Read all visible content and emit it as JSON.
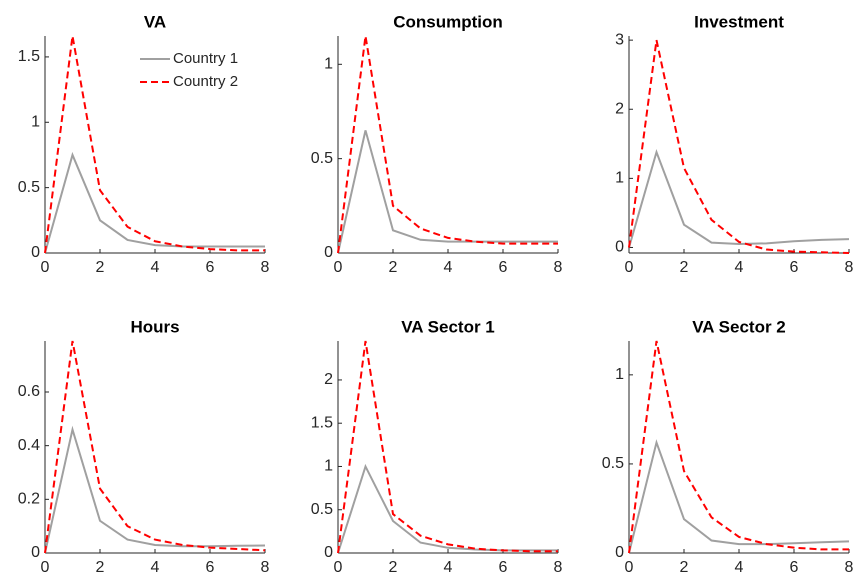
{
  "chart_data": [
    {
      "type": "line",
      "title": "VA",
      "x": [
        0,
        1,
        2,
        3,
        4,
        5,
        6,
        7,
        8
      ],
      "xlim": [
        0,
        8
      ],
      "xticks": [
        0,
        2,
        4,
        6,
        8
      ],
      "ylim": [
        0,
        1.66
      ],
      "yticks": [
        0,
        0.5,
        1,
        1.5
      ],
      "legend": "northeast",
      "series": [
        {
          "name": "Country 1",
          "color": "#a0a0a0",
          "style": "solid",
          "values": [
            0,
            0.75,
            0.25,
            0.1,
            0.06,
            0.05,
            0.05,
            0.05,
            0.05
          ]
        },
        {
          "name": "Country 2",
          "color": "#ff0000",
          "style": "dashed",
          "values": [
            0,
            1.66,
            0.48,
            0.2,
            0.09,
            0.05,
            0.03,
            0.02,
            0.02
          ]
        }
      ]
    },
    {
      "type": "line",
      "title": "Consumption",
      "x": [
        0,
        1,
        2,
        3,
        4,
        5,
        6,
        7,
        8
      ],
      "xlim": [
        0,
        8
      ],
      "xticks": [
        0,
        2,
        4,
        6,
        8
      ],
      "ylim": [
        0,
        1.15
      ],
      "yticks": [
        0,
        0.5,
        1
      ],
      "series": [
        {
          "color": "#a0a0a0",
          "style": "solid",
          "values": [
            0,
            0.65,
            0.12,
            0.07,
            0.06,
            0.06,
            0.06,
            0.06,
            0.06
          ]
        },
        {
          "color": "#ff0000",
          "style": "dashed",
          "values": [
            0,
            1.15,
            0.25,
            0.13,
            0.08,
            0.06,
            0.05,
            0.05,
            0.05
          ]
        }
      ]
    },
    {
      "type": "line",
      "title": "Investment",
      "x": [
        0,
        1,
        2,
        3,
        4,
        5,
        6,
        7,
        8
      ],
      "xlim": [
        0,
        8
      ],
      "xticks": [
        0,
        2,
        4,
        6,
        8
      ],
      "ylim": [
        -0.08,
        3.06
      ],
      "yticks": [
        0,
        1,
        2,
        3
      ],
      "series": [
        {
          "color": "#a0a0a0",
          "style": "solid",
          "values": [
            0,
            1.38,
            0.33,
            0.07,
            0.05,
            0.06,
            0.09,
            0.11,
            0.12
          ]
        },
        {
          "color": "#ff0000",
          "style": "dashed",
          "values": [
            0,
            3.0,
            1.15,
            0.4,
            0.08,
            -0.03,
            -0.06,
            -0.07,
            -0.08
          ]
        }
      ]
    },
    {
      "type": "line",
      "title": "Hours",
      "x": [
        0,
        1,
        2,
        3,
        4,
        5,
        6,
        7,
        8
      ],
      "xlim": [
        0,
        8
      ],
      "xticks": [
        0,
        2,
        4,
        6,
        8
      ],
      "ylim": [
        0,
        0.79
      ],
      "yticks": [
        0,
        0.2,
        0.4,
        0.6
      ],
      "series": [
        {
          "color": "#a0a0a0",
          "style": "solid",
          "values": [
            0,
            0.46,
            0.12,
            0.05,
            0.03,
            0.025,
            0.025,
            0.027,
            0.028
          ]
        },
        {
          "color": "#ff0000",
          "style": "dashed",
          "values": [
            0,
            0.79,
            0.24,
            0.1,
            0.05,
            0.03,
            0.02,
            0.015,
            0.01
          ]
        }
      ]
    },
    {
      "type": "line",
      "title": "VA Sector 1",
      "x": [
        0,
        1,
        2,
        3,
        4,
        5,
        6,
        7,
        8
      ],
      "xlim": [
        0,
        8
      ],
      "xticks": [
        0,
        2,
        4,
        6,
        8
      ],
      "ylim": [
        0,
        2.45
      ],
      "yticks": [
        0,
        0.5,
        1,
        1.5,
        2
      ],
      "series": [
        {
          "color": "#a0a0a0",
          "style": "solid",
          "values": [
            0,
            1.0,
            0.37,
            0.12,
            0.06,
            0.04,
            0.03,
            0.03,
            0.03
          ]
        },
        {
          "color": "#ff0000",
          "style": "dashed",
          "values": [
            0,
            2.45,
            0.45,
            0.2,
            0.1,
            0.05,
            0.03,
            0.02,
            0.02
          ]
        }
      ]
    },
    {
      "type": "line",
      "title": "VA Sector 2",
      "x": [
        0,
        1,
        2,
        3,
        4,
        5,
        6,
        7,
        8
      ],
      "xlim": [
        0,
        8
      ],
      "xticks": [
        0,
        2,
        4,
        6,
        8
      ],
      "ylim": [
        0,
        1.19
      ],
      "yticks": [
        0,
        0.5,
        1
      ],
      "series": [
        {
          "color": "#a0a0a0",
          "style": "solid",
          "values": [
            0,
            0.62,
            0.19,
            0.07,
            0.05,
            0.05,
            0.055,
            0.06,
            0.065
          ]
        },
        {
          "color": "#ff0000",
          "style": "dashed",
          "values": [
            0,
            1.19,
            0.46,
            0.2,
            0.09,
            0.05,
            0.03,
            0.02,
            0.02
          ]
        }
      ]
    }
  ]
}
